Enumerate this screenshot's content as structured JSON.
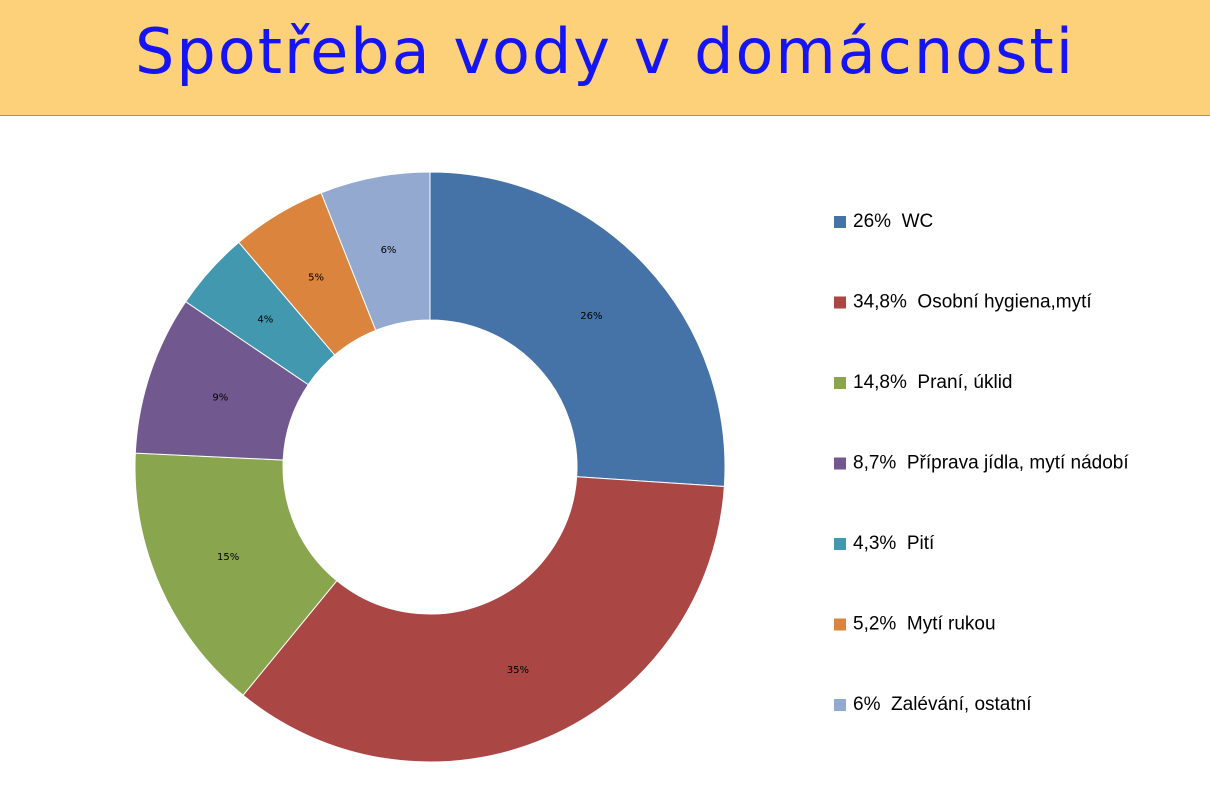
{
  "chart_data": {
    "type": "donut",
    "title": "Spotřeba vody v domácnosti",
    "categories": [
      "26%  WC",
      "34,8%  Osobní hygiena,mytí",
      "14,8%  Praní, úklid",
      "8,7%  Příprava jídla, mytí nádobí",
      "4,3%  Pití",
      "5,2%  Mytí rukou",
      "6%  Zalévání, ostatní"
    ],
    "values": [
      26,
      34.8,
      14.8,
      8.7,
      4.3,
      5.2,
      6
    ],
    "value_labels": [
      "26%",
      "35%",
      "15%",
      "9%",
      "4%",
      "5%",
      "6%"
    ],
    "colors": [
      "#4572a7",
      "#aa4643",
      "#89a54e",
      "#71588f",
      "#4198af",
      "#db843d",
      "#93a9cf"
    ],
    "legend": "right"
  }
}
